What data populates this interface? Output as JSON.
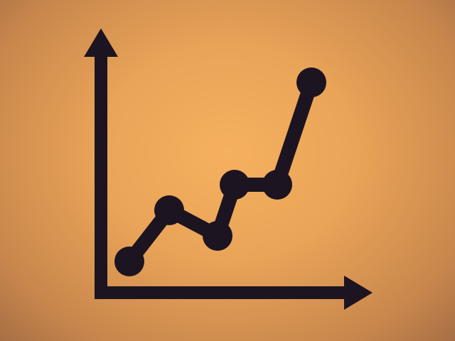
{
  "icon": {
    "name": "line-chart-icon",
    "colors": {
      "background_center": "#f5b05f",
      "background_edge": "#a66f45",
      "foreground": "#1c1420"
    },
    "chart_data": {
      "type": "line",
      "x": [
        1,
        2,
        3,
        4,
        5,
        6
      ],
      "values": [
        1.0,
        3.0,
        2.0,
        4.0,
        4.0,
        8.0
      ]
    }
  }
}
